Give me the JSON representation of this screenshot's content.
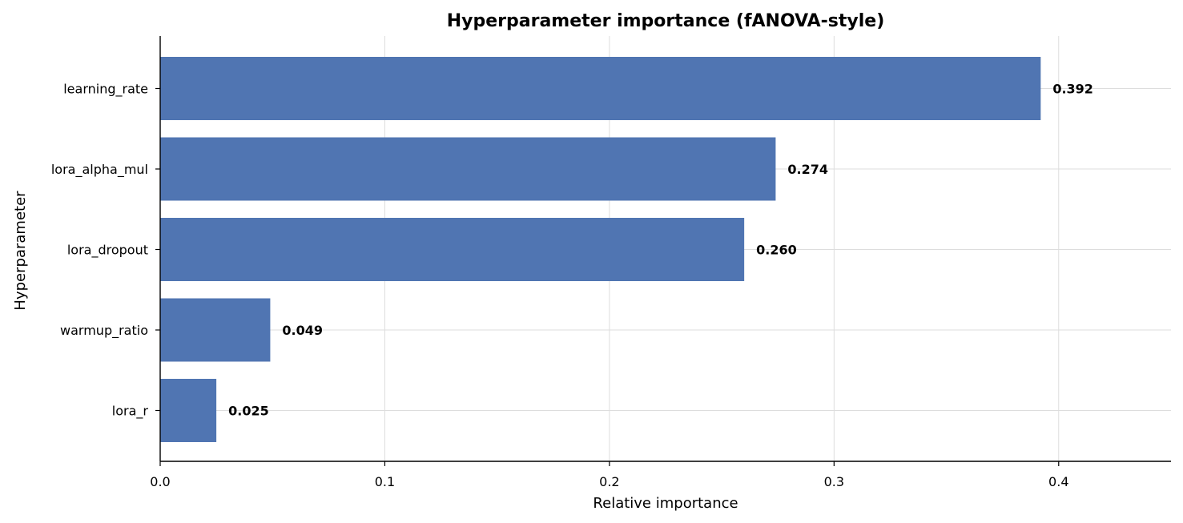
{
  "chart_data": {
    "type": "bar",
    "orientation": "horizontal",
    "title": "Hyperparameter importance (fANOVA-style)",
    "xlabel": "Relative importance",
    "ylabel": "Hyperparameter",
    "categories": [
      "learning_rate",
      "lora_alpha_mul",
      "lora_dropout",
      "warmup_ratio",
      "lora_r"
    ],
    "values": [
      0.392,
      0.274,
      0.26,
      0.049,
      0.025
    ],
    "value_labels": [
      "0.392",
      "0.274",
      "0.260",
      "0.049",
      "0.025"
    ],
    "xlim": [
      0,
      0.45
    ],
    "xticks": [
      0.0,
      0.1,
      0.2,
      0.3,
      0.4
    ],
    "xtick_labels": [
      "0.0",
      "0.1",
      "0.2",
      "0.3",
      "0.4"
    ],
    "grid": true,
    "bar_color": "#4c72b0"
  }
}
